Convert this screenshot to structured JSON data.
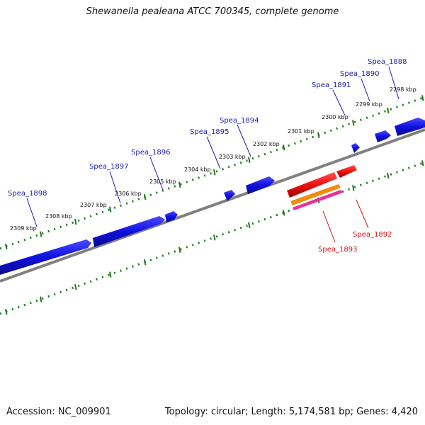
{
  "title": "Shewanella pealeana ATCC 700345, complete genome",
  "footer": {
    "accession": "Accession: NC_009901",
    "summary": "Topology: circular; Length: 5,174,581 bp; Genes: 4,420"
  },
  "scale_labels": [
    "2309 kbp",
    "2308 kbp",
    "2307 kbp",
    "2306 kbp",
    "2305 kbp",
    "2304 kbp",
    "2303 kbp",
    "2302 kbp",
    "2301 kbp",
    "2300 kbp",
    "2299 kbp",
    "2298 kbp"
  ],
  "gene_labels": [
    {
      "name": "Spea_1898",
      "strand": "forward"
    },
    {
      "name": "Spea_1897",
      "strand": "forward"
    },
    {
      "name": "Spea_1896",
      "strand": "forward"
    },
    {
      "name": "Spea_1895",
      "strand": "forward"
    },
    {
      "name": "Spea_1894",
      "strand": "forward"
    },
    {
      "name": "Spea_1891",
      "strand": "forward"
    },
    {
      "name": "Spea_1890",
      "strand": "forward"
    },
    {
      "name": "Spea_1888",
      "strand": "forward"
    },
    {
      "name": "Spea_1892",
      "strand": "reverse"
    },
    {
      "name": "Spea_1893",
      "strand": "reverse"
    }
  ],
  "colors": {
    "forward_gene": "#1010e0",
    "reverse_gene": "#ee1111",
    "reverse_gene_2": "#f08c10",
    "reverse_gene_3": "#e8309a",
    "backbone": "#808080",
    "ticks": "#1e7a1e",
    "forward_label": "#1a1aaa",
    "reverse_label": "#cc1111"
  }
}
